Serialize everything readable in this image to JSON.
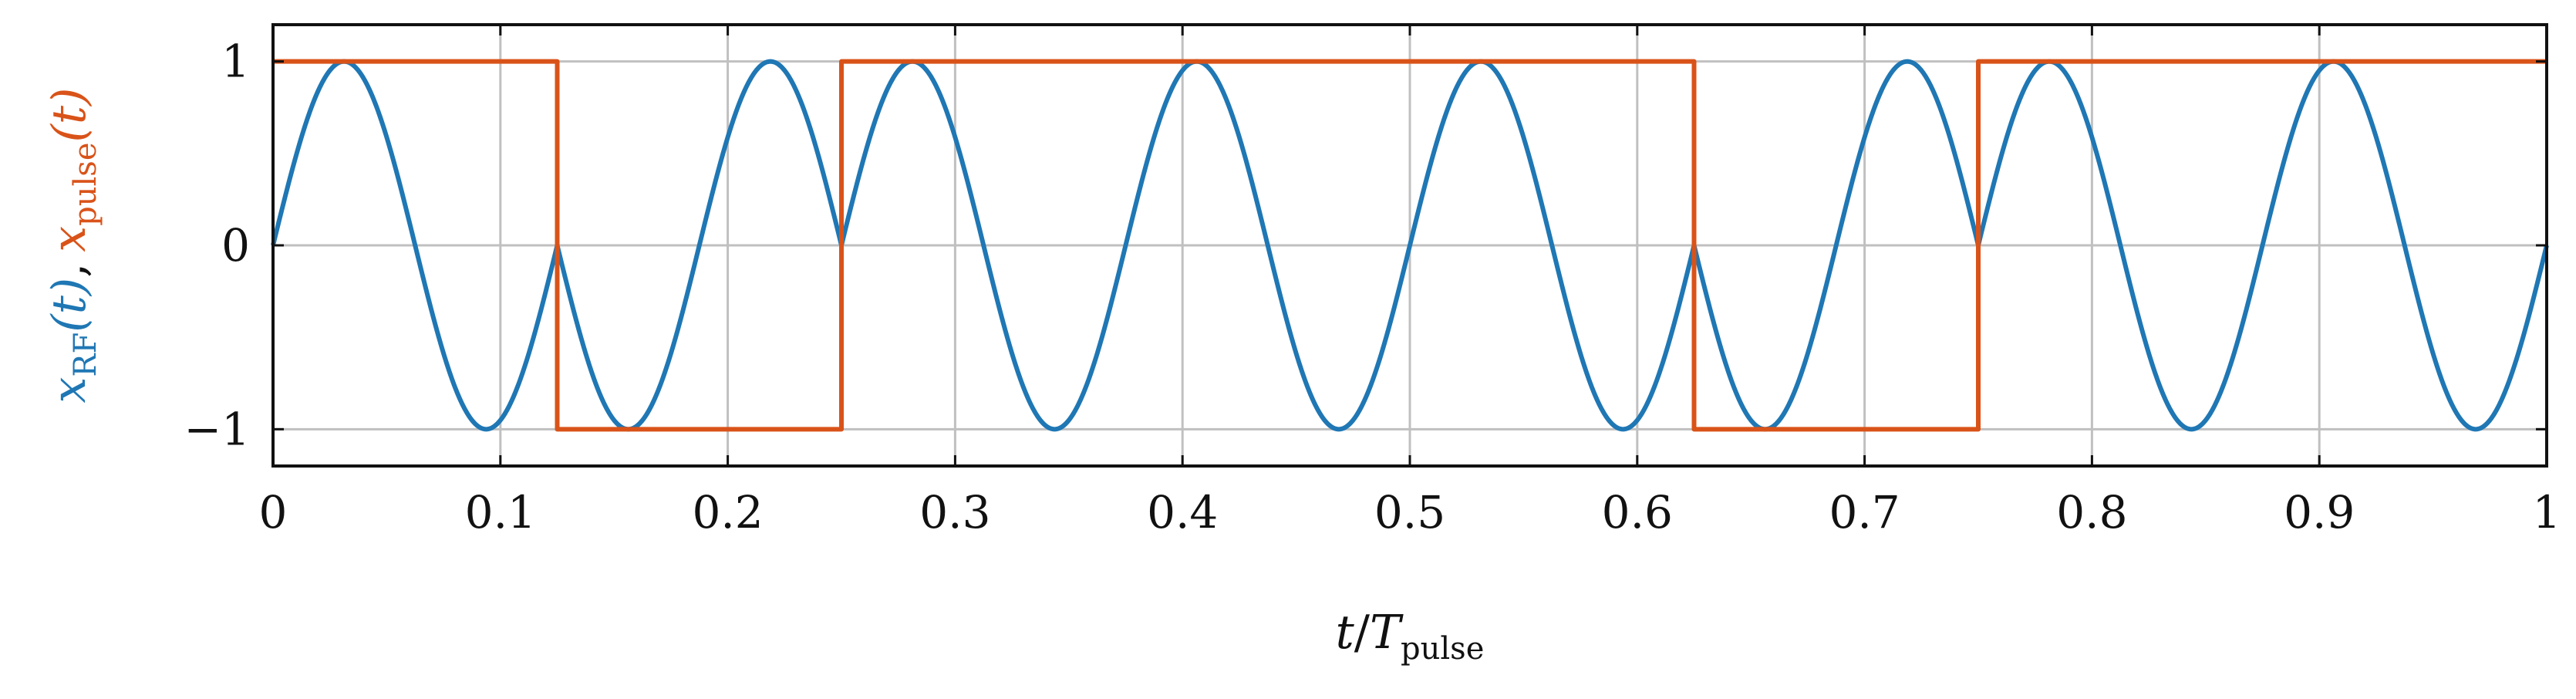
{
  "colors": {
    "rf": "#1f77b4",
    "pulse": "#d95319",
    "grid": "#c0c0c0",
    "axis": "#111111",
    "text": "#111111"
  },
  "chart_data": {
    "type": "line",
    "xlim": [
      0,
      1
    ],
    "ylim": [
      -1.2,
      1.2
    ],
    "grid": true,
    "legend": "none",
    "xticks": [
      0,
      0.1,
      0.2,
      0.3,
      0.4,
      0.5,
      0.6,
      0.7,
      0.8,
      0.9,
      1
    ],
    "xtick_labels": [
      "0",
      "0.1",
      "0.2",
      "0.3",
      "0.4",
      "0.5",
      "0.6",
      "0.7",
      "0.8",
      "0.9",
      "1"
    ],
    "yticks": [
      -1,
      0,
      1
    ],
    "ytick_labels": [
      "−1",
      "0",
      "1"
    ],
    "xlabel": {
      "t": "t",
      "slash": "/",
      "T": "T",
      "sub": "pulse"
    },
    "ylabel": {
      "rf_x": "x",
      "rf_sub": "RF",
      "rf_arg": "(t)",
      "sep": ",",
      "pulse_x": "x",
      "pulse_sub": "pulse",
      "pulse_arg": "(t)"
    },
    "series": [
      {
        "key": "rf",
        "function": "sin(2*pi*f*t + phase)",
        "carrier_cycles": 8,
        "phase_per_bit": [
          0,
          3.14159,
          0,
          0,
          0,
          3.14159,
          0,
          0
        ],
        "bit_length": 0.125
      },
      {
        "key": "pulse",
        "step_x": [
          0,
          0.125,
          0.25,
          0.625,
          0.75,
          1
        ],
        "step_y": [
          1,
          -1,
          1,
          -1,
          1
        ]
      }
    ]
  }
}
